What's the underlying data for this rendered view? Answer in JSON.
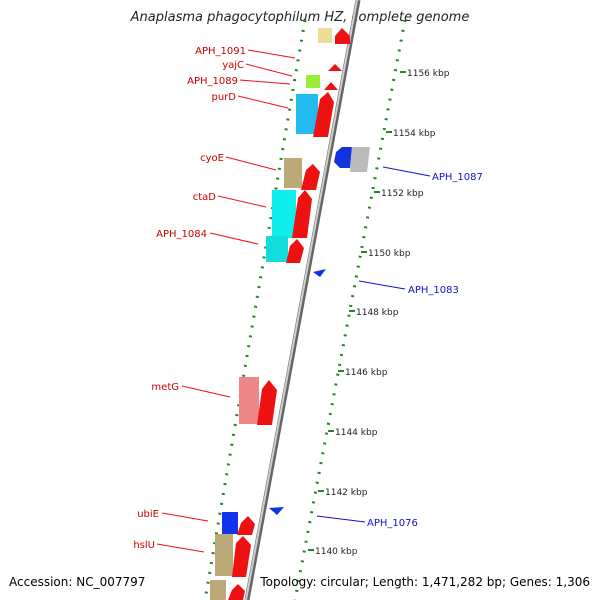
{
  "title": "Anaplasma phagocytophilum HZ, complete genome",
  "footer": {
    "accession": "Accession: NC_007797",
    "info": "Topology: circular; Length: 1,471,282 bp; Genes: 1,306"
  },
  "scale": {
    "unit": "kbp",
    "ticks": [
      "1156 kbp",
      "1154 kbp",
      "1152 kbp",
      "1150 kbp",
      "1148 kbp",
      "1146 kbp",
      "1144 kbp",
      "1142 kbp",
      "1140 kbp"
    ]
  },
  "colors": {
    "forward_gene": "#ee1111",
    "reverse_gene": "#1111dd",
    "backbone": "#888888",
    "dots": "#228822"
  },
  "genes_left": [
    {
      "label": "APH_1091"
    },
    {
      "label": "yajC"
    },
    {
      "label": "APH_1089"
    },
    {
      "label": "purD"
    },
    {
      "label": "cyoE"
    },
    {
      "label": "ctaD"
    },
    {
      "label": "APH_1084"
    },
    {
      "label": "metG"
    },
    {
      "label": "ubiE"
    },
    {
      "label": "hslU"
    }
  ],
  "genes_right": [
    {
      "label": "APH_1087"
    },
    {
      "label": "APH_1083"
    },
    {
      "label": "APH_1076"
    }
  ]
}
